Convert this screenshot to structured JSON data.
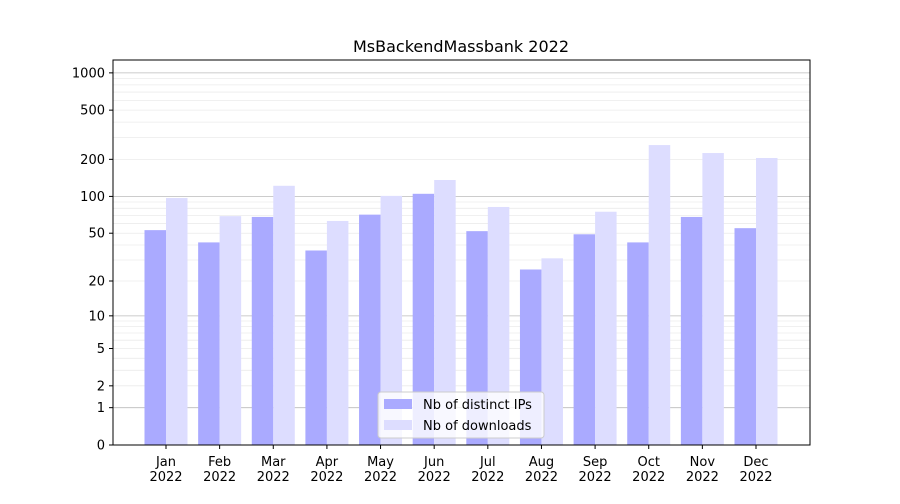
{
  "chart_data": {
    "type": "bar",
    "title": "MsBackendMassbank 2022",
    "xlabel": "",
    "ylabel": "",
    "yscale": "symlog (log10(1+y))",
    "ylim": [
      0,
      1270
    ],
    "yticks": [
      0,
      1,
      2,
      5,
      10,
      20,
      50,
      100,
      200,
      500,
      1000
    ],
    "grid": true,
    "legend_position": "bottom-center",
    "categories": [
      "Jan\n2022",
      "Feb\n2022",
      "Mar\n2022",
      "Apr\n2022",
      "May\n2022",
      "Jun\n2022",
      "Jul\n2022",
      "Aug\n2022",
      "Sep\n2022",
      "Oct\n2022",
      "Nov\n2022",
      "Dec\n2022"
    ],
    "series": [
      {
        "name": "Nb of distinct IPs",
        "color": "#aaaaff",
        "values": [
          53,
          42,
          68,
          36,
          71,
          105,
          52,
          25,
          49,
          42,
          68,
          55
        ]
      },
      {
        "name": "Nb of downloads",
        "color": "#ddddff",
        "values": [
          97,
          69,
          122,
          63,
          101,
          136,
          82,
          31,
          75,
          261,
          225,
          205
        ]
      }
    ]
  }
}
